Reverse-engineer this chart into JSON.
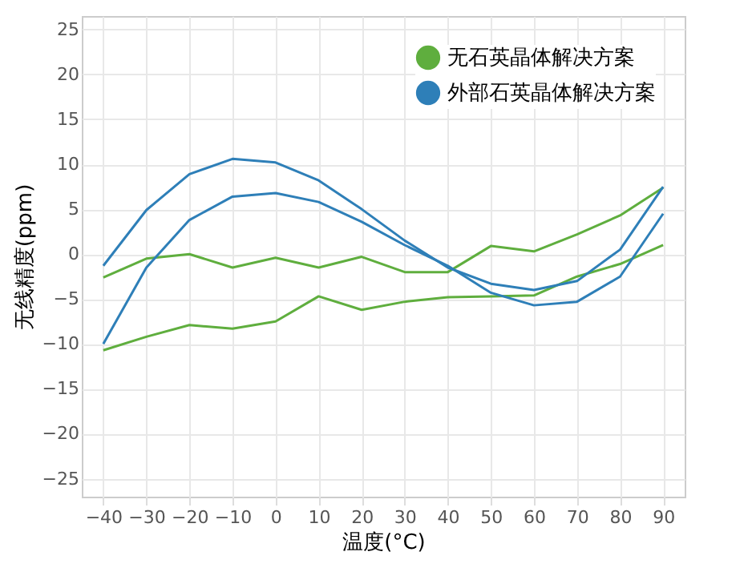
{
  "chart_data": {
    "type": "line",
    "xlabel": "温度(°C)",
    "ylabel": "无线精度(ppm)",
    "x": [
      -40,
      -30,
      -20,
      -10,
      0,
      10,
      20,
      30,
      40,
      50,
      60,
      70,
      80,
      90
    ],
    "series": [
      {
        "name": "无石英晶体解决方案",
        "color": "#5fae3e",
        "values": [
          -2.6,
          -0.5,
          0,
          -1.5,
          -0.4,
          -1.5,
          -0.3,
          -2,
          -2,
          0.9,
          0.3,
          2.2,
          4.3,
          7.4
        ]
      },
      {
        "color": "#5fae3e",
        "values": [
          -10.7,
          -9.2,
          -7.9,
          -8.3,
          -7.5,
          -4.7,
          -6.2,
          -5.3,
          -4.8,
          -4.7,
          -4.6,
          -2.5,
          -1.1,
          1
        ]
      },
      {
        "name": "外部石英晶体解决方案",
        "color": "#2e7fb8",
        "values": [
          -1.3,
          4.9,
          8.9,
          10.6,
          10.2,
          8.2,
          5,
          1.5,
          -1.5,
          -3.3,
          -4,
          -3,
          0.5,
          7.5
        ]
      },
      {
        "color": "#2e7fb8",
        "values": [
          -10,
          -1.5,
          3.8,
          6.4,
          6.8,
          5.8,
          3.6,
          1,
          -1.3,
          -4.3,
          -5.7,
          -5.3,
          -2.5,
          4.5
        ]
      }
    ],
    "xlim": [
      -45,
      95
    ],
    "xticks": [
      -40,
      -30,
      -20,
      -10,
      0,
      10,
      20,
      30,
      40,
      50,
      60,
      70,
      80,
      90
    ],
    "ylim": [
      -27,
      26.5
    ],
    "yticks": [
      -25,
      -20,
      -15,
      -10,
      -5,
      0,
      5,
      10,
      15,
      20,
      25
    ],
    "grid": true,
    "legend": "top right",
    "marker": "none",
    "line_style": "solid"
  }
}
